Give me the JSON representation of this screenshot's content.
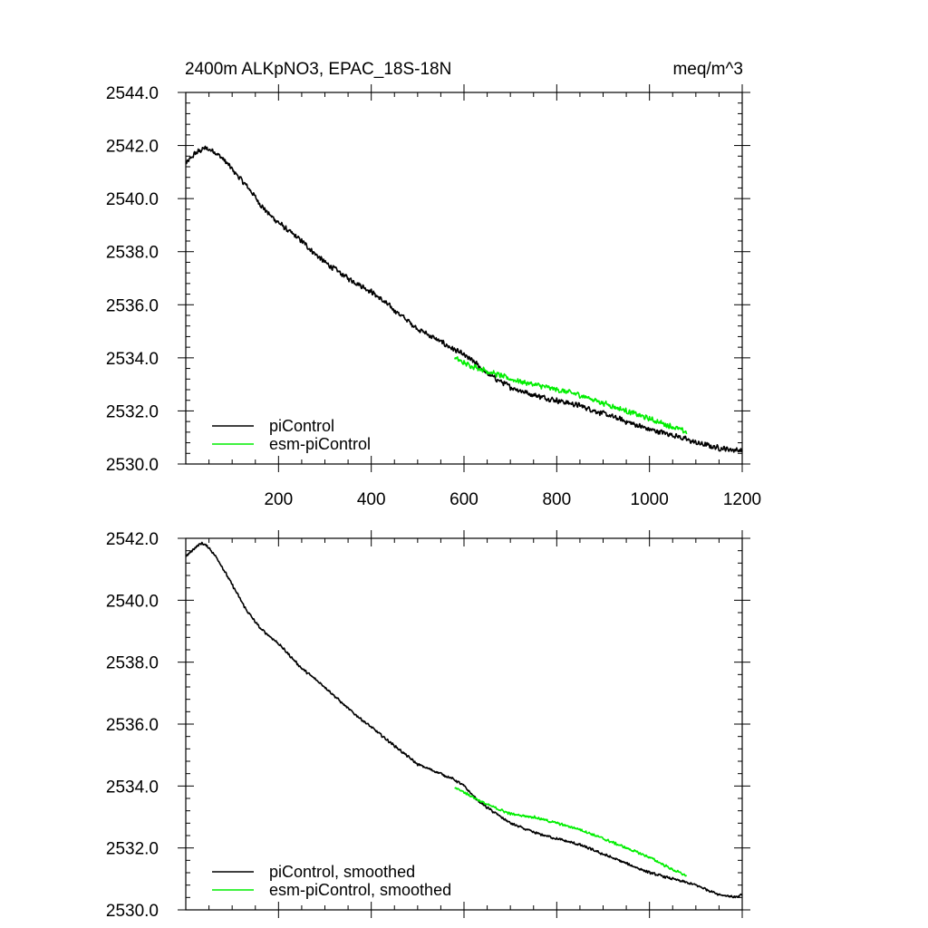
{
  "chart_data": [
    {
      "type": "line",
      "title": "2400m ALKpNO3, EPAC_18S-18N",
      "units": "meq/m^3",
      "xlim": [
        0,
        1200
      ],
      "ylim": [
        2530,
        2544
      ],
      "x_ticks": [
        "200",
        "400",
        "600",
        "800",
        "1000",
        "1200"
      ],
      "y_ticks": [
        "2530.0",
        "2532.0",
        "2534.0",
        "2536.0",
        "2538.0",
        "2540.0",
        "2542.0",
        "2544.0"
      ],
      "legend_position": "bottom-left",
      "series": [
        {
          "name": "piControl",
          "color": "#000000",
          "points": [
            [
              0,
              2541.3
            ],
            [
              20,
              2541.7
            ],
            [
              40,
              2541.9
            ],
            [
              60,
              2541.8
            ],
            [
              80,
              2541.5
            ],
            [
              100,
              2541.1
            ],
            [
              120,
              2540.7
            ],
            [
              140,
              2540.3
            ],
            [
              160,
              2539.8
            ],
            [
              180,
              2539.4
            ],
            [
              200,
              2539.1
            ],
            [
              220,
              2538.8
            ],
            [
              250,
              2538.4
            ],
            [
              280,
              2537.9
            ],
            [
              300,
              2537.6
            ],
            [
              350,
              2537.0
            ],
            [
              400,
              2536.5
            ],
            [
              450,
              2535.8
            ],
            [
              500,
              2535.1
            ],
            [
              550,
              2534.6
            ],
            [
              580,
              2534.3
            ],
            [
              600,
              2534.1
            ],
            [
              625,
              2533.8
            ],
            [
              650,
              2533.4
            ],
            [
              700,
              2532.9
            ],
            [
              750,
              2532.6
            ],
            [
              800,
              2532.4
            ],
            [
              850,
              2532.2
            ],
            [
              900,
              2531.9
            ],
            [
              950,
              2531.6
            ],
            [
              1000,
              2531.3
            ],
            [
              1050,
              2531.1
            ],
            [
              1100,
              2530.8
            ],
            [
              1150,
              2530.6
            ],
            [
              1200,
              2530.5
            ]
          ],
          "noise": 0.12
        },
        {
          "name": "esm-piControl",
          "color": "#00ee00",
          "points": [
            [
              580,
              2534.0
            ],
            [
              600,
              2533.8
            ],
            [
              650,
              2533.5
            ],
            [
              700,
              2533.2
            ],
            [
              750,
              2533.0
            ],
            [
              800,
              2532.8
            ],
            [
              850,
              2532.6
            ],
            [
              900,
              2532.3
            ],
            [
              950,
              2532.0
            ],
            [
              1000,
              2531.7
            ],
            [
              1050,
              2531.4
            ],
            [
              1080,
              2531.2
            ]
          ],
          "noise": 0.12
        }
      ]
    },
    {
      "type": "line",
      "xlim": [
        0,
        1200
      ],
      "ylim": [
        2530,
        2542
      ],
      "y_ticks": [
        "2530.0",
        "2532.0",
        "2534.0",
        "2536.0",
        "2538.0",
        "2540.0",
        "2542.0"
      ],
      "legend_position": "bottom-left",
      "series": [
        {
          "name": "piControl, smoothed",
          "color": "#000000",
          "points": [
            [
              0,
              2541.4
            ],
            [
              20,
              2541.7
            ],
            [
              35,
              2541.85
            ],
            [
              50,
              2541.7
            ],
            [
              70,
              2541.3
            ],
            [
              100,
              2540.5
            ],
            [
              130,
              2539.7
            ],
            [
              160,
              2539.1
            ],
            [
              200,
              2538.6
            ],
            [
              250,
              2537.8
            ],
            [
              300,
              2537.2
            ],
            [
              350,
              2536.5
            ],
            [
              400,
              2535.9
            ],
            [
              450,
              2535.3
            ],
            [
              500,
              2534.7
            ],
            [
              550,
              2534.4
            ],
            [
              580,
              2534.2
            ],
            [
              600,
              2534.0
            ],
            [
              625,
              2533.6
            ],
            [
              650,
              2533.3
            ],
            [
              700,
              2532.8
            ],
            [
              750,
              2532.5
            ],
            [
              800,
              2532.3
            ],
            [
              850,
              2532.1
            ],
            [
              900,
              2531.8
            ],
            [
              950,
              2531.5
            ],
            [
              1000,
              2531.2
            ],
            [
              1050,
              2531.0
            ],
            [
              1100,
              2530.8
            ],
            [
              1150,
              2530.5
            ],
            [
              1190,
              2530.4
            ],
            [
              1200,
              2530.5
            ]
          ],
          "noise": 0.05
        },
        {
          "name": "esm-piControl, smoothed",
          "color": "#00ee00",
          "points": [
            [
              580,
              2533.95
            ],
            [
              600,
              2533.8
            ],
            [
              650,
              2533.4
            ],
            [
              700,
              2533.1
            ],
            [
              750,
              2533.0
            ],
            [
              800,
              2532.8
            ],
            [
              850,
              2532.6
            ],
            [
              900,
              2532.3
            ],
            [
              950,
              2532.0
            ],
            [
              1000,
              2531.7
            ],
            [
              1050,
              2531.3
            ],
            [
              1080,
              2531.1
            ]
          ],
          "noise": 0.05
        }
      ]
    }
  ]
}
